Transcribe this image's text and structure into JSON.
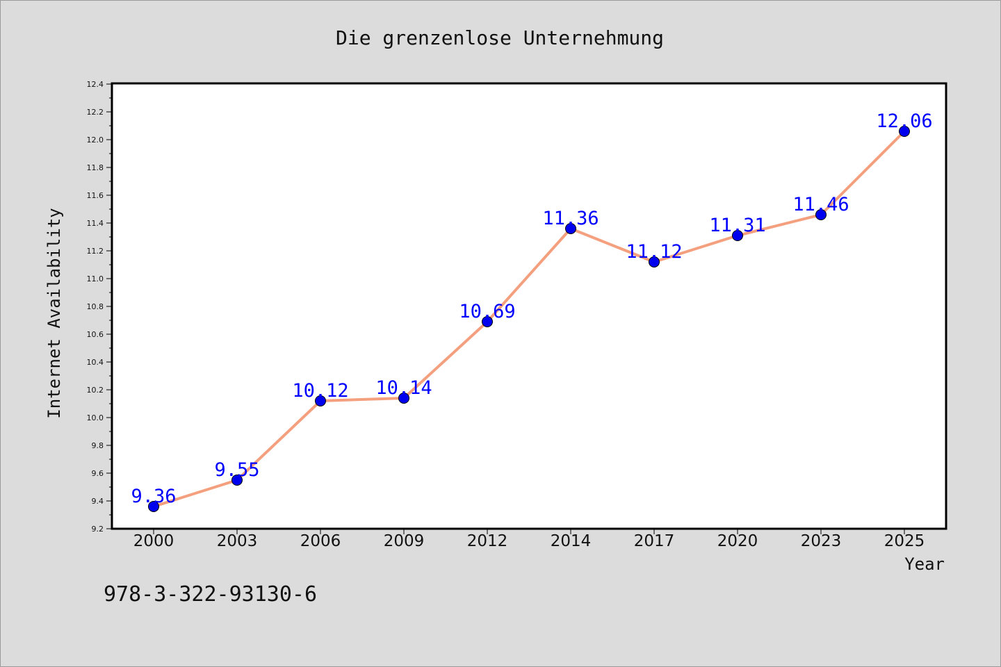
{
  "chart_data": {
    "type": "line",
    "title": "Die grenzenlose Unternehmung",
    "xlabel": "Year",
    "ylabel": "Internet Availability",
    "categories": [
      "2000",
      "2003",
      "2006",
      "2009",
      "2012",
      "2014",
      "2017",
      "2020",
      "2023",
      "2025"
    ],
    "series": [
      {
        "values": [
          9.36,
          9.55,
          10.12,
          10.14,
          10.69,
          11.36,
          11.12,
          11.31,
          11.46,
          12.06
        ],
        "data_labels": [
          "9.36",
          "9.55",
          "10.12",
          "10.14",
          "10.69",
          "11.36",
          "11.12",
          "11.31",
          "11.46",
          "12.06"
        ],
        "line_color": "#f4a07e",
        "marker_color": "#0000ee",
        "label_color": "#0000ff"
      }
    ],
    "ylim": [
      9.2,
      12.4
    ],
    "y_ticks": [
      "9.2",
      "9.4",
      "9.6",
      "9.8",
      "10.0",
      "10.2",
      "10.4",
      "10.6",
      "10.8",
      "11.0",
      "11.2",
      "11.4",
      "11.6",
      "11.8",
      "12.0",
      "12.2",
      "12.4"
    ],
    "grid": false,
    "legend": "none"
  },
  "footer_text": "978-3-322-93130-6",
  "colors": {
    "background": "#dcdcdc",
    "plot_background": "#ffffff",
    "axis": "#000000"
  }
}
